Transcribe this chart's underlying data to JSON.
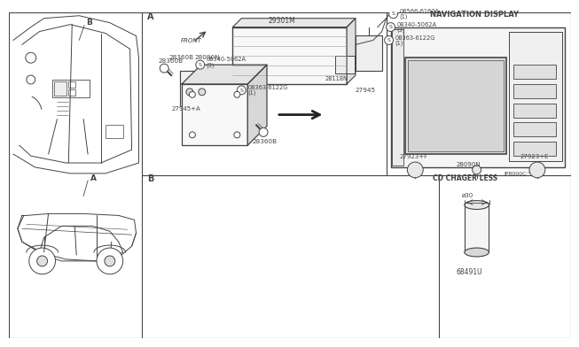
{
  "bg_color": "#ffffff",
  "line_color": "#444444",
  "lw": 0.7,
  "fig_width": 6.4,
  "fig_height": 3.72,
  "footer": "JP8000C^",
  "labels": {
    "A": "A",
    "B": "B",
    "FRONT": "FRONT",
    "cd_chager_less": "CD CHAGER LESS",
    "nav_display": "NAVIGATION DISPLAY",
    "phi30": "ø30",
    "29301M": "29301M",
    "27945": "27945",
    "27945A": "27945+A",
    "28118N": "28118N",
    "08340_top": "08340-5062A",
    "08340_top_n": "(3)",
    "08340_left": "08340-5062A",
    "08340_left_n": "(3)",
    "08566": "08566-6162A",
    "08566_n": "(1)",
    "08363_right": "08363-6122G",
    "08363_right_n": "(1)",
    "08363_bottom": "08363-6122G",
    "08363_bottom_n": "(1)",
    "68491U": "68491U",
    "28360B_top": "28360B",
    "28360B_bot": "28360B",
    "28090N_top": "28090N",
    "28090N_bot": "28090N",
    "27923F": "27923+F",
    "27923E": "27923+E"
  }
}
